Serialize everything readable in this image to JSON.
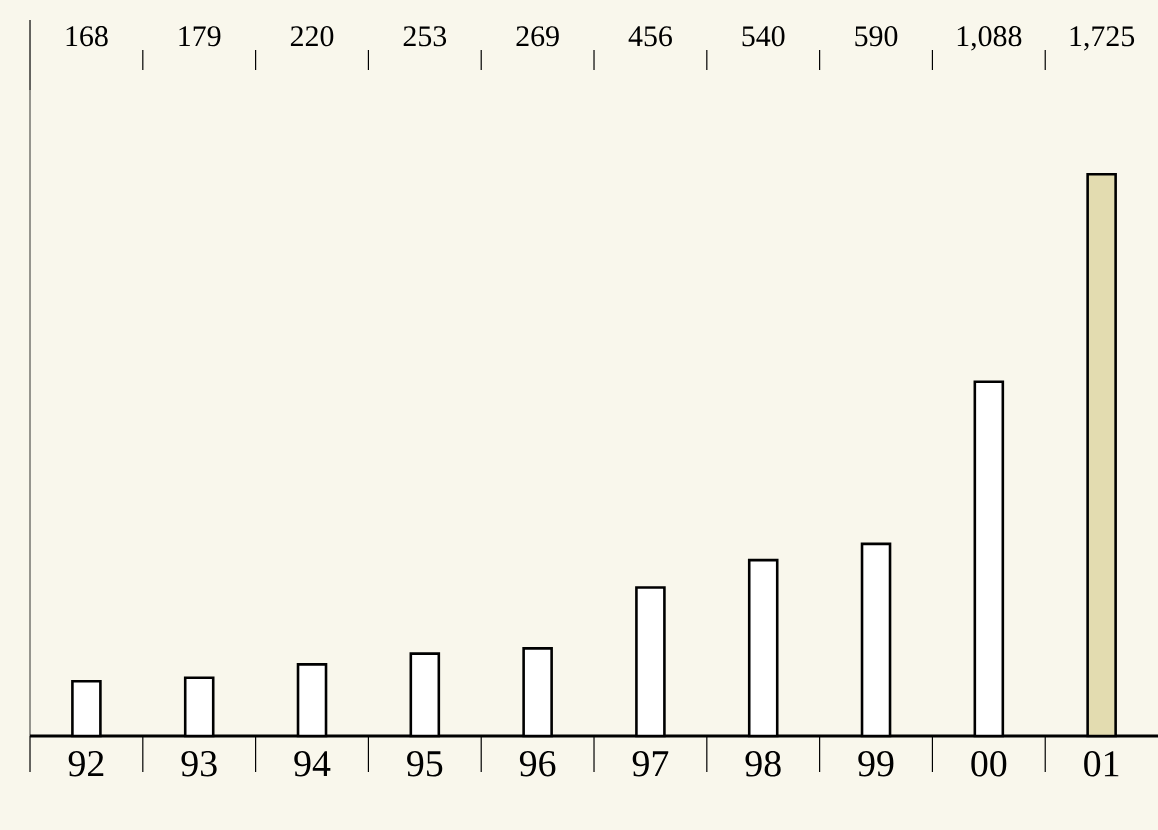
{
  "chart_data": {
    "type": "bar",
    "categories": [
      "92",
      "93",
      "94",
      "95",
      "96",
      "97",
      "98",
      "99",
      "00",
      "01"
    ],
    "values": [
      168,
      179,
      220,
      253,
      269,
      456,
      540,
      590,
      1088,
      1725
    ],
    "value_labels": [
      "168",
      "179",
      "220",
      "253",
      "269",
      "456",
      "540",
      "590",
      "1,088",
      "1,725"
    ],
    "colors": [
      "#ffffff",
      "#ffffff",
      "#ffffff",
      "#ffffff",
      "#ffffff",
      "#ffffff",
      "#ffffff",
      "#ffffff",
      "#ffffff",
      "#e3dcb0"
    ]
  }
}
